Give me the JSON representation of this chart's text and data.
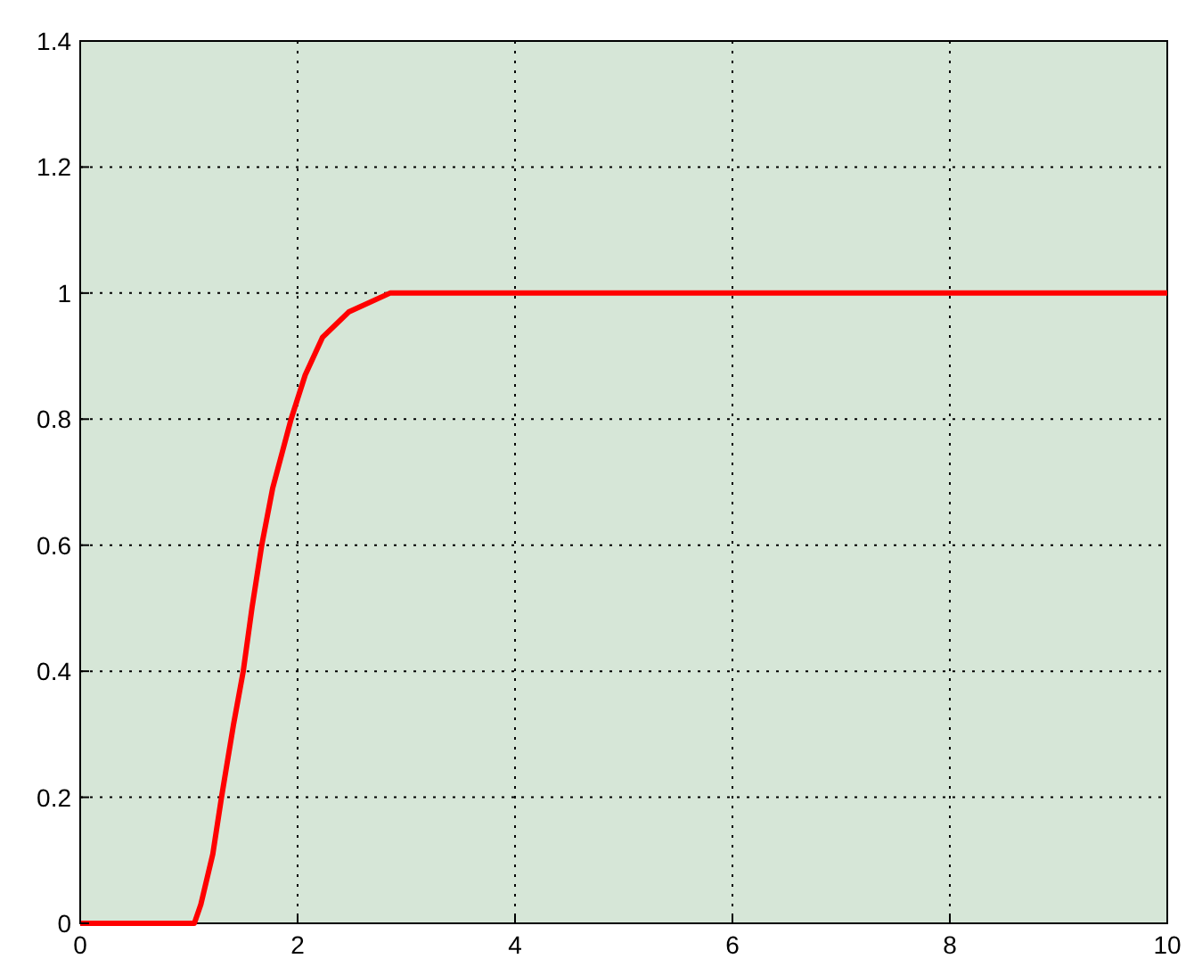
{
  "chart_data": {
    "type": "line",
    "x": [
      0,
      1.05,
      1.11,
      1.22,
      1.3,
      1.41,
      1.5,
      1.58,
      1.67,
      1.77,
      1.94,
      2.07,
      2.23,
      2.47,
      2.85,
      10
    ],
    "series": [
      {
        "color": "#ff0000",
        "values": [
          0,
          0,
          0.03,
          0.11,
          0.2,
          0.315,
          0.4,
          0.5,
          0.6,
          0.69,
          0.8,
          0.87,
          0.93,
          0.97,
          1,
          1
        ]
      }
    ],
    "xlim": [
      0,
      10
    ],
    "xticks": [
      0,
      2,
      4,
      6,
      8,
      10
    ],
    "ylim": [
      0,
      1.4
    ],
    "yticks": [
      0,
      0.2,
      0.4,
      0.6,
      0.8,
      1,
      1.2,
      1.4
    ],
    "grid": true,
    "line_style": "solid",
    "marker": "none"
  }
}
